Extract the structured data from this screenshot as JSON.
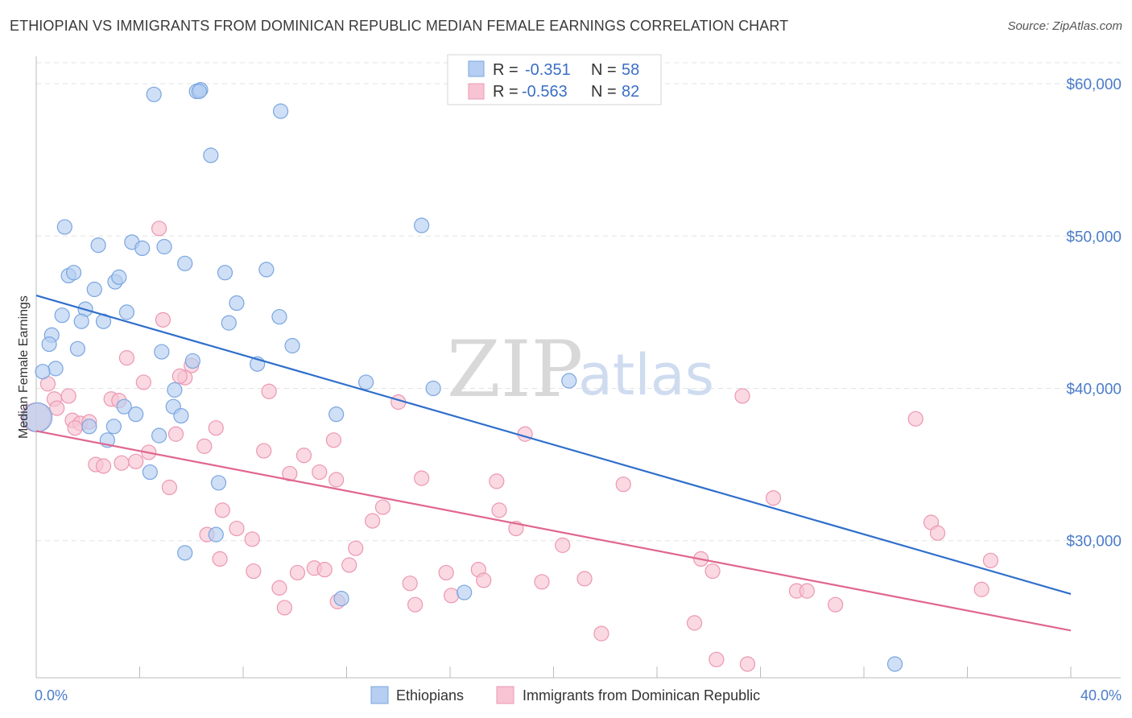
{
  "title": "ETHIOPIAN VS IMMIGRANTS FROM DOMINICAN REPUBLIC MEDIAN FEMALE EARNINGS CORRELATION CHART",
  "source": "Source: ZipAtlas.com",
  "watermark": {
    "zip": "ZIP",
    "atlas": "atlas"
  },
  "colors": {
    "blue_fill": "#b5cef1",
    "blue_stroke": "#7aa6e0",
    "blue_line": "#2f6fcb",
    "pink_fill": "#f8c4d3",
    "pink_stroke": "#ec97b1",
    "pink_line": "#e0668f",
    "grid": "#e3e3e3",
    "tick_label": "#4a7cc9"
  },
  "stats": [
    {
      "r_label": "R =",
      "r_value": "-0.351",
      "n_label": "N =",
      "n_value": "58"
    },
    {
      "r_label": "R =",
      "r_value": "-0.563",
      "n_label": "N =",
      "n_value": "82"
    }
  ],
  "chart_data": {
    "type": "scatter",
    "title": "ETHIOPIAN VS IMMIGRANTS FROM DOMINICAN REPUBLIC MEDIAN FEMALE EARNINGS CORRELATION CHART",
    "xlabel": "",
    "ylabel": "Median Female Earnings",
    "xlim": [
      0,
      40
    ],
    "ylim": [
      21000,
      61800
    ],
    "x_tick_labels": [
      "0.0%",
      "40.0%"
    ],
    "y_ticks": [
      30000,
      40000,
      50000,
      60000
    ],
    "y_tick_labels": [
      "$30,000",
      "$40,000",
      "$50,000",
      "$60,000"
    ],
    "grid": true,
    "legend_position": "bottom-center",
    "series": [
      {
        "name": "Ethiopians",
        "color": "#b5cef1",
        "trend": {
          "x": [
            0,
            40
          ],
          "y": [
            46100,
            26500
          ]
        },
        "points": [
          [
            4.55,
            59300
          ],
          [
            6.2,
            59500
          ],
          [
            6.35,
            59600
          ],
          [
            9.45,
            58200
          ],
          [
            6.75,
            55300
          ],
          [
            1.1,
            50600
          ],
          [
            14.9,
            50700
          ],
          [
            2.4,
            49400
          ],
          [
            3.7,
            49600
          ],
          [
            4.1,
            49200
          ],
          [
            4.95,
            49300
          ],
          [
            5.75,
            48200
          ],
          [
            7.3,
            47600
          ],
          [
            8.9,
            47800
          ],
          [
            1.25,
            47400
          ],
          [
            1.45,
            47600
          ],
          [
            2.25,
            46500
          ],
          [
            3.05,
            47000
          ],
          [
            3.2,
            47300
          ],
          [
            1.9,
            45200
          ],
          [
            7.75,
            45600
          ],
          [
            1.75,
            44400
          ],
          [
            2.6,
            44400
          ],
          [
            9.4,
            44700
          ],
          [
            3.5,
            45000
          ],
          [
            1.0,
            44800
          ],
          [
            7.45,
            44300
          ],
          [
            0.6,
            43500
          ],
          [
            0.5,
            42900
          ],
          [
            1.6,
            42600
          ],
          [
            9.9,
            42800
          ],
          [
            4.85,
            42400
          ],
          [
            6.05,
            41800
          ],
          [
            8.55,
            41600
          ],
          [
            0.75,
            41300
          ],
          [
            0.25,
            41100
          ],
          [
            12.75,
            40400
          ],
          [
            15.35,
            40000
          ],
          [
            5.35,
            39900
          ],
          [
            20.6,
            40500
          ],
          [
            5.3,
            38800
          ],
          [
            3.4,
            38800
          ],
          [
            3.85,
            38300
          ],
          [
            5.6,
            38200
          ],
          [
            11.6,
            38300
          ],
          [
            2.05,
            37500
          ],
          [
            3.0,
            37500
          ],
          [
            4.75,
            36900
          ],
          [
            0.05,
            38100
          ],
          [
            2.75,
            36600
          ],
          [
            4.4,
            34500
          ],
          [
            7.05,
            33800
          ],
          [
            5.75,
            29200
          ],
          [
            6.95,
            30400
          ],
          [
            11.8,
            26200
          ],
          [
            16.55,
            26600
          ],
          [
            33.2,
            21900
          ],
          [
            6.3,
            59500
          ]
        ]
      },
      {
        "name": "Immigrants from Dominican Republic",
        "color": "#f8c4d3",
        "trend": {
          "x": [
            0,
            40
          ],
          "y": [
            37200,
            24100
          ]
        },
        "points": [
          [
            4.75,
            50500
          ],
          [
            4.9,
            44500
          ],
          [
            3.5,
            42000
          ],
          [
            6.0,
            41500
          ],
          [
            5.75,
            40700
          ],
          [
            5.55,
            40800
          ],
          [
            4.15,
            40400
          ],
          [
            0.45,
            40300
          ],
          [
            9.0,
            39800
          ],
          [
            1.25,
            39500
          ],
          [
            0.7,
            39300
          ],
          [
            2.9,
            39300
          ],
          [
            3.2,
            39200
          ],
          [
            0.8,
            38700
          ],
          [
            14.0,
            39100
          ],
          [
            27.3,
            39500
          ],
          [
            1.4,
            37900
          ],
          [
            1.7,
            37700
          ],
          [
            2.05,
            37800
          ],
          [
            1.5,
            37400
          ],
          [
            5.4,
            37000
          ],
          [
            6.95,
            37400
          ],
          [
            6.5,
            36200
          ],
          [
            11.5,
            36600
          ],
          [
            18.9,
            37000
          ],
          [
            34.0,
            38000
          ],
          [
            4.35,
            35800
          ],
          [
            8.8,
            35900
          ],
          [
            10.35,
            35600
          ],
          [
            2.3,
            35000
          ],
          [
            2.6,
            34900
          ],
          [
            3.3,
            35100
          ],
          [
            3.85,
            35200
          ],
          [
            9.8,
            34400
          ],
          [
            10.95,
            34500
          ],
          [
            11.6,
            34000
          ],
          [
            14.9,
            34100
          ],
          [
            17.8,
            33900
          ],
          [
            22.7,
            33700
          ],
          [
            5.15,
            33500
          ],
          [
            28.5,
            32800
          ],
          [
            7.2,
            32000
          ],
          [
            13.4,
            32200
          ],
          [
            17.9,
            32000
          ],
          [
            13.0,
            31300
          ],
          [
            7.75,
            30800
          ],
          [
            18.55,
            30800
          ],
          [
            34.6,
            31200
          ],
          [
            34.85,
            30500
          ],
          [
            6.6,
            30400
          ],
          [
            8.35,
            30100
          ],
          [
            12.35,
            29500
          ],
          [
            20.35,
            29700
          ],
          [
            25.7,
            28800
          ],
          [
            7.1,
            28800
          ],
          [
            12.1,
            28400
          ],
          [
            36.9,
            28700
          ],
          [
            8.4,
            28000
          ],
          [
            10.1,
            27900
          ],
          [
            10.75,
            28200
          ],
          [
            11.15,
            28100
          ],
          [
            15.85,
            27900
          ],
          [
            17.1,
            28100
          ],
          [
            17.3,
            27400
          ],
          [
            26.15,
            28000
          ],
          [
            21.2,
            27500
          ],
          [
            14.45,
            27200
          ],
          [
            19.55,
            27300
          ],
          [
            9.4,
            26900
          ],
          [
            29.4,
            26700
          ],
          [
            29.8,
            26700
          ],
          [
            36.55,
            26800
          ],
          [
            11.65,
            26000
          ],
          [
            16.05,
            26400
          ],
          [
            9.6,
            25600
          ],
          [
            14.65,
            25800
          ],
          [
            30.9,
            25800
          ],
          [
            25.45,
            24600
          ],
          [
            21.85,
            23900
          ],
          [
            26.3,
            22200
          ],
          [
            27.5,
            21900
          ],
          [
            0.0,
            38100
          ]
        ]
      }
    ]
  },
  "legend": [
    {
      "label": "Ethiopians"
    },
    {
      "label": "Immigrants from Dominican Republic"
    }
  ]
}
